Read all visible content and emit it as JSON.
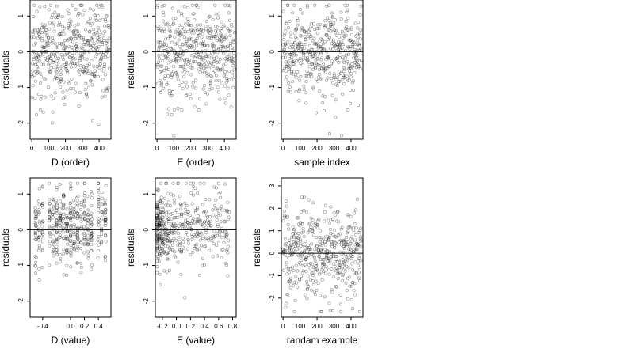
{
  "figure": {
    "background": "#ffffff",
    "point_color": "#000000",
    "point_opacity": 0.45
  },
  "chart_data": [
    {
      "type": "scatter",
      "xlabel": "D (order)",
      "ylabel": "residuals",
      "xlim": [
        -10,
        470
      ],
      "ylim": [
        -2.45,
        1.45
      ],
      "xticks": [
        0,
        100,
        200,
        300,
        400
      ],
      "xtick_labels": [
        "0",
        "100",
        "200",
        "300",
        "400"
      ],
      "yticks": [
        -2,
        -1,
        0,
        1
      ],
      "ytick_labels": [
        "-2",
        "-1",
        "0",
        "1"
      ],
      "reference_line_y": 0,
      "n_points": 460,
      "x_range": [
        0,
        460
      ],
      "y_range": [
        -2.35,
        1.3
      ],
      "structure": "index",
      "seed": 11,
      "points": []
    },
    {
      "type": "scatter",
      "xlabel": "E (order)",
      "ylabel": "residuals",
      "xlim": [
        -10,
        470
      ],
      "ylim": [
        -2.45,
        1.45
      ],
      "xticks": [
        0,
        100,
        200,
        300,
        400
      ],
      "xtick_labels": [
        "0",
        "100",
        "200",
        "300",
        "400"
      ],
      "yticks": [
        -2,
        -1,
        0,
        1
      ],
      "ytick_labels": [
        "-2",
        "-1",
        "0",
        "1"
      ],
      "reference_line_y": 0,
      "n_points": 460,
      "x_range": [
        0,
        460
      ],
      "y_range": [
        -2.35,
        1.3
      ],
      "structure": "index",
      "seed": 23,
      "points": []
    },
    {
      "type": "scatter",
      "xlabel": "sample index",
      "ylabel": "residuals",
      "xlim": [
        -10,
        470
      ],
      "ylim": [
        -2.45,
        1.45
      ],
      "xticks": [
        0,
        100,
        200,
        300,
        400
      ],
      "xtick_labels": [
        "0",
        "100",
        "200",
        "300",
        "400"
      ],
      "yticks": [
        -2,
        -1,
        0,
        1
      ],
      "ytick_labels": [
        "-2",
        "-1",
        "0",
        "1"
      ],
      "reference_line_y": 0,
      "n_points": 460,
      "x_range": [
        0,
        460
      ],
      "y_range": [
        -2.35,
        1.3
      ],
      "structure": "index",
      "seed": 37,
      "points": []
    },
    {
      "type": "scatter",
      "xlabel": "D (value)",
      "ylabel": "residuals",
      "xlim": [
        -0.58,
        0.58
      ],
      "ylim": [
        -2.45,
        1.45
      ],
      "xticks": [
        -0.4,
        0.0,
        0.2,
        0.4
      ],
      "xtick_labels": [
        "-0.4",
        "0.0",
        "0.2",
        "0.4"
      ],
      "yticks": [
        -2,
        -1,
        0,
        1
      ],
      "ytick_labels": [
        "-2",
        "-1",
        "0",
        "1"
      ],
      "reference_line_y": 0,
      "n_points": 460,
      "x_range": [
        -0.55,
        0.55
      ],
      "y_range": [
        -2.35,
        1.3
      ],
      "structure": "columns",
      "columns": [
        -0.5,
        -0.45,
        -0.4,
        -0.3,
        -0.25,
        -0.2,
        -0.15,
        -0.1,
        -0.05,
        0.0,
        0.05,
        0.1,
        0.15,
        0.2,
        0.25,
        0.3,
        0.4,
        0.45,
        0.5
      ],
      "seed": 51,
      "points": []
    },
    {
      "type": "scatter",
      "xlabel": "E (value)",
      "ylabel": "residuals",
      "xlim": [
        -0.3,
        0.85
      ],
      "ylim": [
        -2.45,
        1.45
      ],
      "xticks": [
        -0.2,
        0.0,
        0.2,
        0.4,
        0.6,
        0.8
      ],
      "xtick_labels": [
        "-0.2",
        "0.0",
        "0.2",
        "0.4",
        "0.6",
        "0.8"
      ],
      "yticks": [
        -2,
        -1,
        0,
        1
      ],
      "ytick_labels": [
        "-2",
        "-1",
        "0",
        "1"
      ],
      "reference_line_y": 0,
      "n_points": 460,
      "x_range": [
        -0.28,
        0.75
      ],
      "y_range": [
        -2.35,
        1.3
      ],
      "structure": "skewed",
      "seed": 67,
      "points": []
    },
    {
      "type": "scatter",
      "xlabel": "randam example",
      "ylabel": "residuals",
      "xlim": [
        -10,
        470
      ],
      "ylim": [
        -2.85,
        3.35
      ],
      "xticks": [
        0,
        100,
        200,
        300,
        400
      ],
      "xtick_labels": [
        "0",
        "100",
        "200",
        "300",
        "400"
      ],
      "yticks": [
        -2,
        -1,
        0,
        1,
        2,
        3
      ],
      "ytick_labels": [
        "-2",
        "-1",
        "0",
        "1",
        "2",
        "3"
      ],
      "reference_line_y": 0,
      "n_points": 460,
      "x_range": [
        0,
        460
      ],
      "y_range": [
        -2.6,
        3.1
      ],
      "structure": "wide",
      "seed": 89,
      "points": []
    }
  ]
}
